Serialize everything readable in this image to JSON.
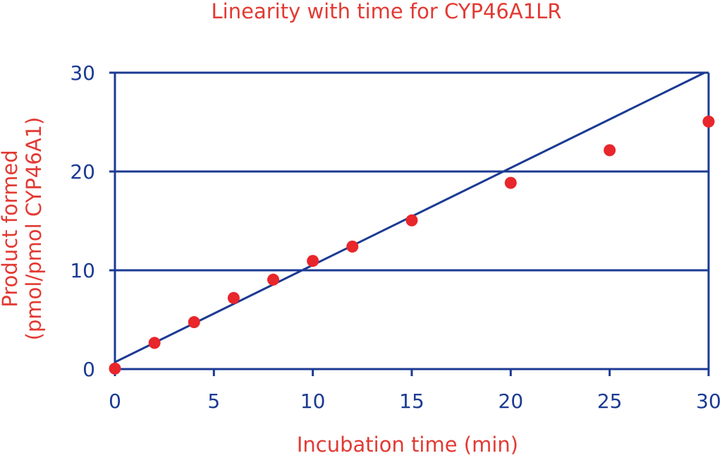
{
  "chart_data": {
    "type": "scatter",
    "title": "Linearity with time for CYP46A1LR",
    "xlabel": "Incubation time (min)",
    "ylabel_line1": "Product formed",
    "ylabel_line2": "(pmol/pmol CYP46A1)",
    "xlim": [
      0,
      30
    ],
    "ylim": [
      0,
      30
    ],
    "x_ticks": [
      "0",
      "5",
      "10",
      "15",
      "20",
      "25",
      "30"
    ],
    "y_ticks": [
      "0",
      "10",
      "20",
      "30"
    ],
    "grid": "horizontal",
    "series": [
      {
        "x": [
          0,
          2,
          4,
          6,
          8,
          10,
          12,
          15,
          20,
          25,
          30
        ],
        "y": [
          0.05,
          2.65,
          4.75,
          7.2,
          9.05,
          10.95,
          12.4,
          15.05,
          18.85,
          22.15,
          25.05
        ]
      }
    ],
    "fit_line": {
      "x": [
        0,
        29.8
      ],
      "y": [
        0.7,
        30
      ]
    },
    "colors": {
      "axis": "#1b3a93",
      "text_red": "#e23a33",
      "marker": "#e8262b",
      "fit": "#1b3a93"
    }
  }
}
